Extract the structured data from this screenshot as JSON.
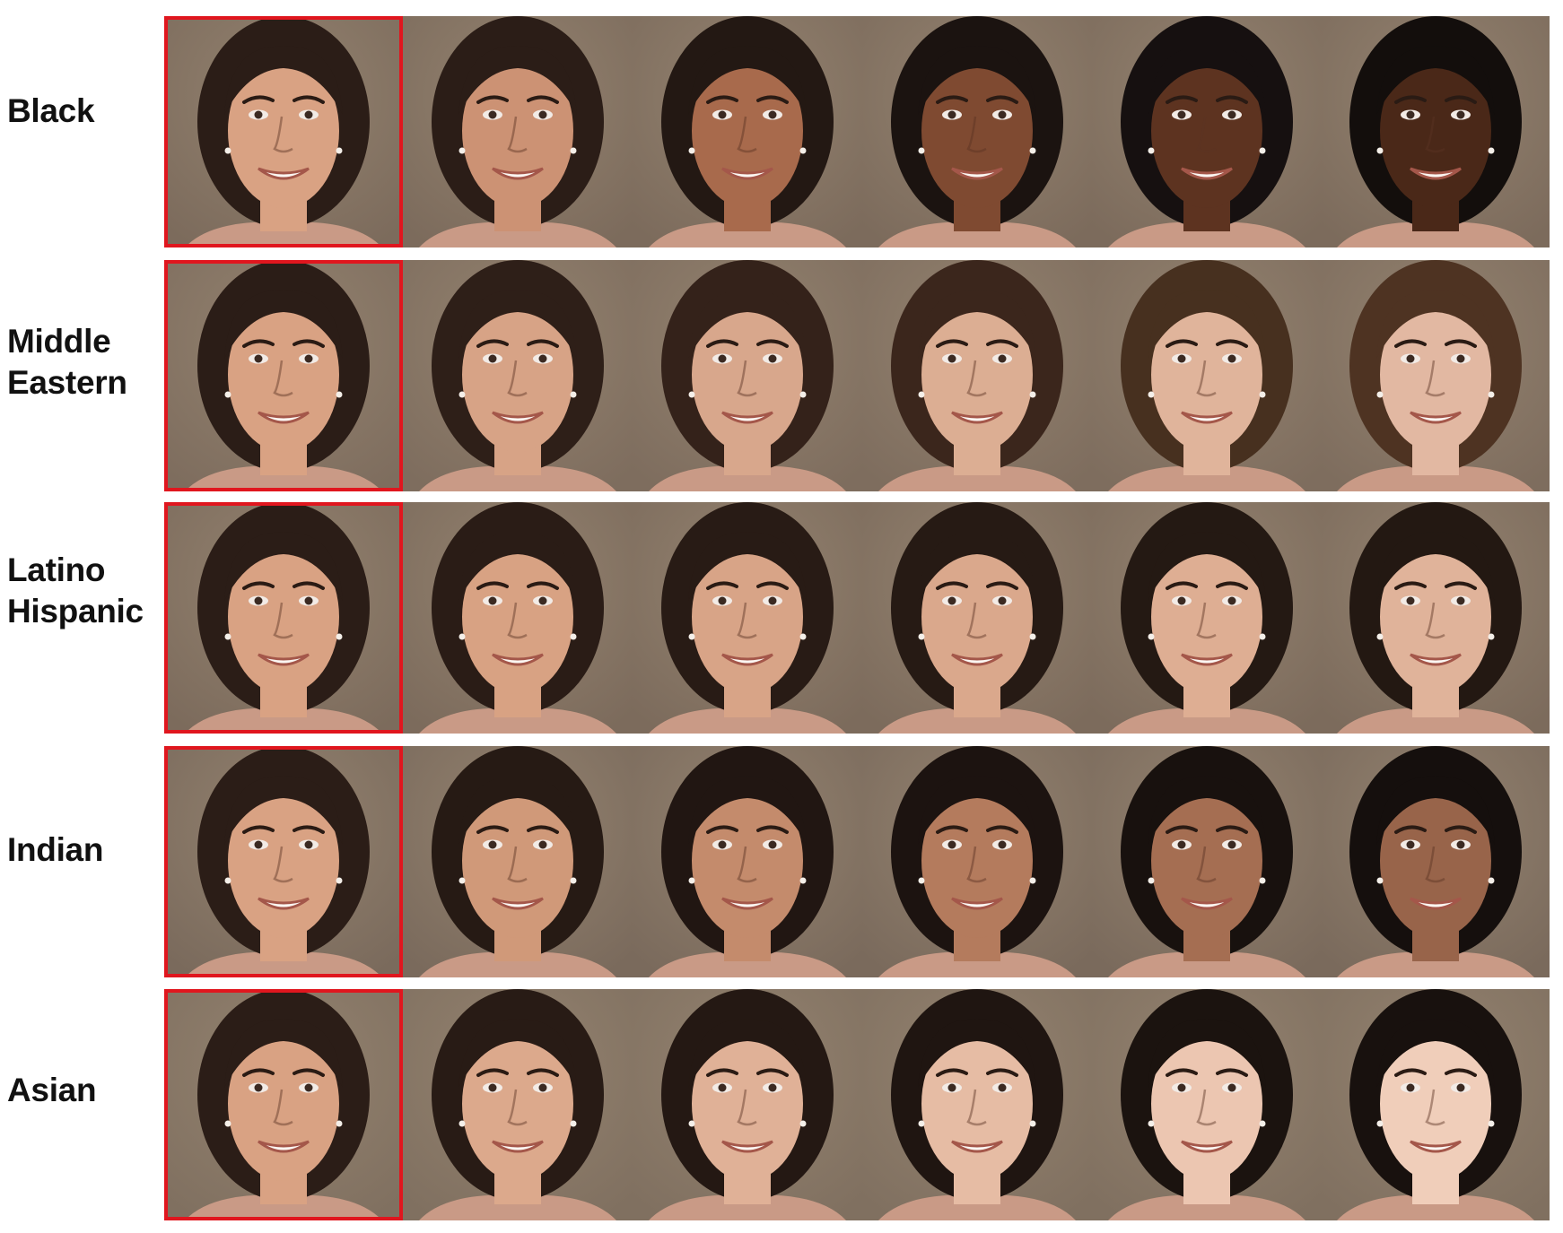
{
  "highlight_color": "#e0161e",
  "rows": [
    {
      "label": "Black",
      "skin": [
        "#d9a283",
        "#cc9274",
        "#a86a4c",
        "#7f4a31",
        "#5d3320",
        "#4a2818"
      ],
      "hair": [
        "#2b1d17",
        "#2b1d17",
        "#231813",
        "#1b1310",
        "#161010",
        "#130e0c"
      ],
      "bg": "#7c6b5c"
    },
    {
      "label": "Middle\nEastern",
      "skin": [
        "#d9a283",
        "#d7a386",
        "#d8a78c",
        "#dcae93",
        "#e0b49b",
        "#e2b8a2"
      ],
      "hair": [
        "#2b1d17",
        "#2e1f18",
        "#34221a",
        "#3b261c",
        "#47301f",
        "#4e3322"
      ],
      "bg": "#7e6d5e"
    },
    {
      "label": "Latino\nHispanic",
      "skin": [
        "#d9a283",
        "#d8a283",
        "#d8a487",
        "#daa88c",
        "#deae93",
        "#e0b39a"
      ],
      "hair": [
        "#2b1d17",
        "#2a1c16",
        "#281b15",
        "#261a14",
        "#241913",
        "#231812"
      ],
      "bg": "#7c6b5c"
    },
    {
      "label": "Indian",
      "skin": [
        "#d9a283",
        "#d09979",
        "#c48b6c",
        "#b47b5d",
        "#a56e52",
        "#98644a"
      ],
      "hair": [
        "#2b1d17",
        "#261a14",
        "#211612",
        "#1c1310",
        "#18110e",
        "#150f0d"
      ],
      "bg": "#7a6a5c"
    },
    {
      "label": "Asian",
      "skin": [
        "#d9a283",
        "#dca98c",
        "#e0b197",
        "#e6bca4",
        "#ecc6b1",
        "#f0ceba"
      ],
      "hair": [
        "#2b1d17",
        "#281b15",
        "#241813",
        "#1f1511",
        "#1b130f",
        "#18110e"
      ],
      "bg": "#807060"
    }
  ]
}
